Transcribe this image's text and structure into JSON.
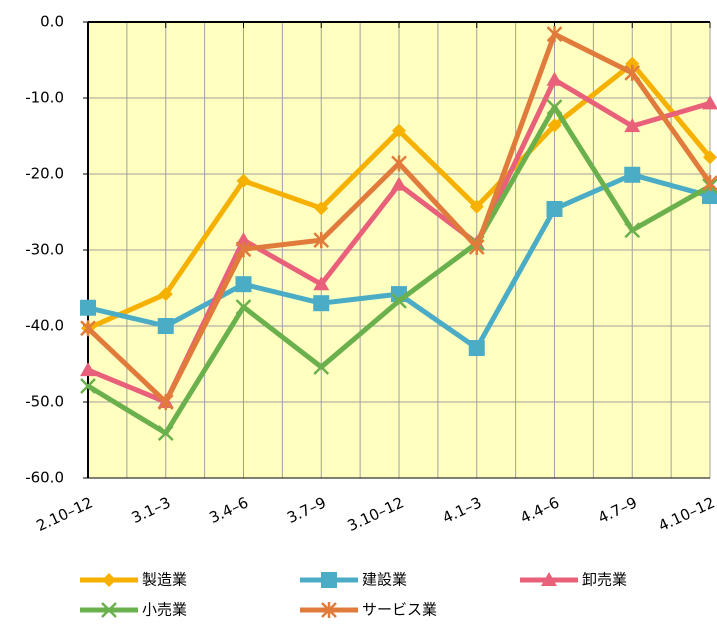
{
  "chart_data": {
    "type": "line",
    "categories": [
      "2.10–12",
      "3.1–3",
      "3.4–6",
      "3.7–9",
      "3.10–12",
      "4.1–3",
      "4.4–6",
      "4.7–9",
      "4.10–12"
    ],
    "series": [
      {
        "name": "製造業",
        "color": "#f5b000",
        "marker": "diamond",
        "values": [
          -40.3,
          -35.8,
          -20.9,
          -24.5,
          -14.3,
          -24.3,
          -13.6,
          -5.5,
          -17.8
        ]
      },
      {
        "name": "建設業",
        "color": "#4bacc6",
        "marker": "square",
        "values": [
          -37.6,
          -40.0,
          -34.5,
          -37.0,
          -35.8,
          -42.9,
          -24.6,
          -20.1,
          -22.9
        ]
      },
      {
        "name": "卸売業",
        "color": "#e8607a",
        "marker": "triangle",
        "values": [
          -45.8,
          -50.0,
          -28.7,
          -34.5,
          -21.4,
          -29.1,
          -7.6,
          -13.7,
          -10.7
        ]
      },
      {
        "name": "小売業",
        "color": "#6ab04c",
        "marker": "x",
        "values": [
          -47.9,
          -54.1,
          -37.5,
          -45.4,
          -36.7,
          -29.1,
          -11.2,
          -27.4,
          -21.6
        ]
      },
      {
        "name": "サービス業",
        "color": "#e07b3c",
        "marker": "star",
        "values": [
          -40.3,
          -50.0,
          -29.9,
          -28.7,
          -18.6,
          -29.6,
          -1.6,
          -6.7,
          -21.2
        ]
      }
    ],
    "ylim": [
      -60,
      0
    ],
    "yticks": [
      {
        "value": -60,
        "label": "-60.0"
      },
      {
        "value": -50,
        "label": "-50.0"
      },
      {
        "value": -40,
        "label": "-40.0"
      },
      {
        "value": -30,
        "label": "-30.0"
      },
      {
        "value": -20,
        "label": "-20.0"
      },
      {
        "value": -10,
        "label": "-10.0"
      },
      {
        "value": 0,
        "label": "0.0"
      }
    ],
    "grid": true,
    "background": "#ffffc0"
  }
}
